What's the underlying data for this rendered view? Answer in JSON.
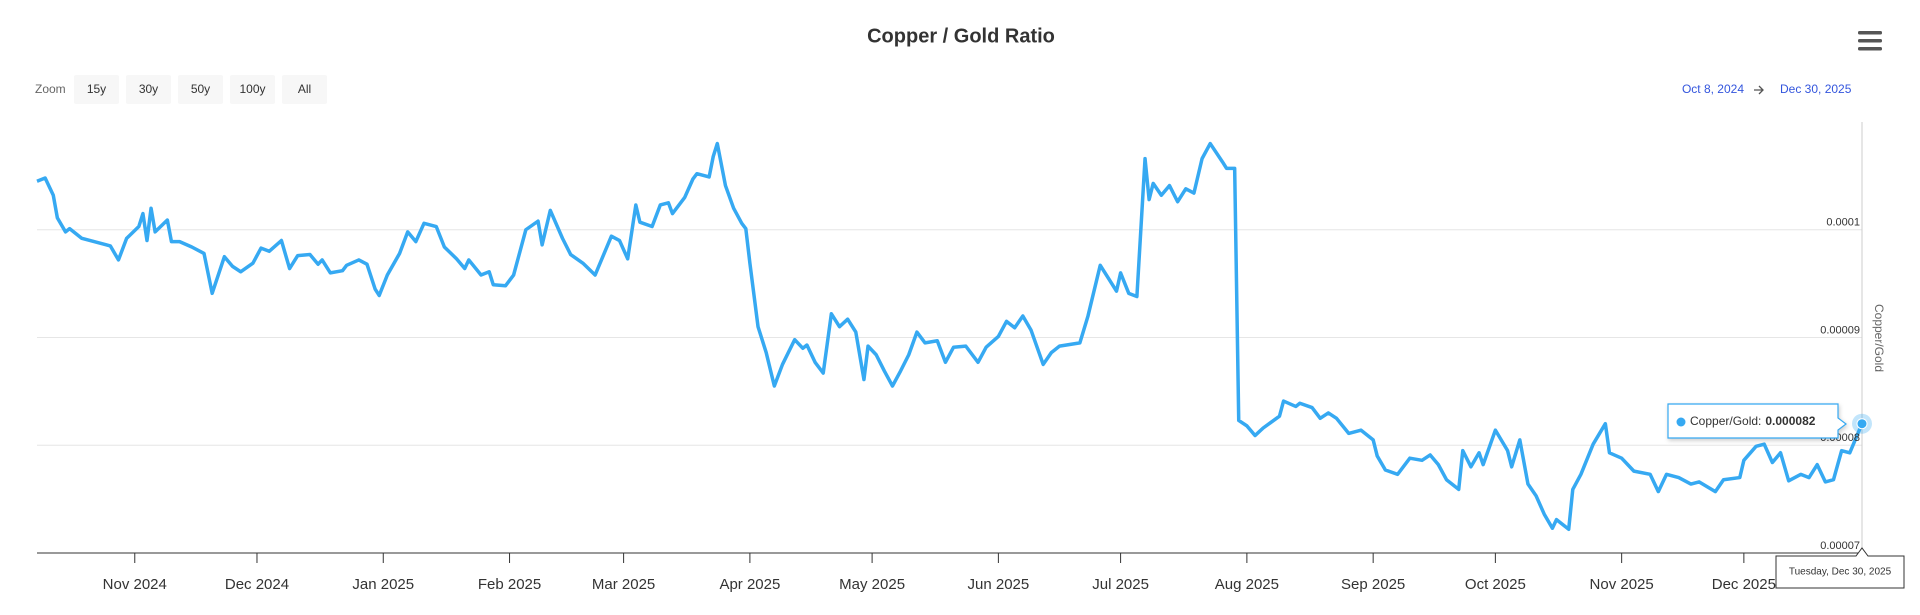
{
  "chart_data": {
    "type": "line",
    "title": "Copper / Gold Ratio",
    "zoom": {
      "label": "Zoom",
      "buttons": [
        "15y",
        "30y",
        "50y",
        "100y",
        "All"
      ]
    },
    "range": {
      "from": "Oct 8, 2024",
      "to": "Dec 30, 2025"
    },
    "y_label": "Copper/Gold",
    "color": "#36a9f2",
    "xlim": [
      "2024-10-08",
      "2025-12-30"
    ],
    "xticks": [
      {
        "value": "2024-11-01",
        "label": "Nov 2024"
      },
      {
        "value": "2024-12-01",
        "label": "Dec 2024"
      },
      {
        "value": "2025-01-01",
        "label": "Jan 2025"
      },
      {
        "value": "2025-02-01",
        "label": "Feb 2025"
      },
      {
        "value": "2025-03-01",
        "label": "Mar 2025"
      },
      {
        "value": "2025-04-01",
        "label": "Apr 2025"
      },
      {
        "value": "2025-05-01",
        "label": "May 2025"
      },
      {
        "value": "2025-06-01",
        "label": "Jun 2025"
      },
      {
        "value": "2025-07-01",
        "label": "Jul 2025"
      },
      {
        "value": "2025-08-01",
        "label": "Aug 2025"
      },
      {
        "value": "2025-09-01",
        "label": "Sep 2025"
      },
      {
        "value": "2025-10-01",
        "label": "Oct 2025"
      },
      {
        "value": "2025-11-01",
        "label": "Nov 2025"
      },
      {
        "value": "2025-12-01",
        "label": "Dec 2025"
      }
    ],
    "ylim": [
      7e-05,
      0.00011
    ],
    "yticks": [
      7e-05,
      8e-05,
      9e-05,
      0.0001
    ],
    "grid": true,
    "tooltip": {
      "label": "Copper/Gold:",
      "header": "Tuesday, Dec 30, 2025"
    },
    "x": [
      "2024-10-08",
      "2024-10-10",
      "2024-10-12",
      "2024-10-13",
      "2024-10-15",
      "2024-10-16",
      "2024-10-19",
      "2024-10-22",
      "2024-10-25",
      "2024-10-26",
      "2024-10-28",
      "2024-10-30",
      "2024-11-02",
      "2024-11-03",
      "2024-11-04",
      "2024-11-05",
      "2024-11-06",
      "2024-11-09",
      "2024-11-10",
      "2024-11-12",
      "2024-11-15",
      "2024-11-18",
      "2024-11-20",
      "2024-11-23",
      "2024-11-25",
      "2024-11-27",
      "2024-11-30",
      "2024-12-02",
      "2024-12-04",
      "2024-12-07",
      "2024-12-09",
      "2024-12-11",
      "2024-12-14",
      "2024-12-16",
      "2024-12-17",
      "2024-12-19",
      "2024-12-22",
      "2024-12-23",
      "2024-12-26",
      "2024-12-28",
      "2024-12-30",
      "2024-12-31",
      "2025-01-02",
      "2025-01-05",
      "2025-01-07",
      "2025-01-09",
      "2025-01-11",
      "2025-01-14",
      "2025-01-16",
      "2025-01-19",
      "2025-01-21",
      "2025-01-22",
      "2025-01-25",
      "2025-01-27",
      "2025-01-28",
      "2025-01-31",
      "2025-02-02",
      "2025-02-05",
      "2025-02-08",
      "2025-02-09",
      "2025-02-11",
      "2025-02-14",
      "2025-02-16",
      "2025-02-19",
      "2025-02-22",
      "2025-02-26",
      "2025-02-28",
      "2025-03-02",
      "2025-03-04",
      "2025-03-05",
      "2025-03-08",
      "2025-03-10",
      "2025-03-12",
      "2025-03-13",
      "2025-03-16",
      "2025-03-18",
      "2025-03-19",
      "2025-03-22",
      "2025-03-23",
      "2025-03-24",
      "2025-03-26",
      "2025-03-28",
      "2025-03-30",
      "2025-03-31",
      "2025-04-01",
      "2025-04-03",
      "2025-04-05",
      "2025-04-07",
      "2025-04-09",
      "2025-04-12",
      "2025-04-14",
      "2025-04-15",
      "2025-04-17",
      "2025-04-19",
      "2025-04-21",
      "2025-04-23",
      "2025-04-25",
      "2025-04-27",
      "2025-04-29",
      "2025-04-30",
      "2025-05-02",
      "2025-05-04",
      "2025-05-06",
      "2025-05-08",
      "2025-05-10",
      "2025-05-12",
      "2025-05-14",
      "2025-05-17",
      "2025-05-19",
      "2025-05-21",
      "2025-05-24",
      "2025-05-27",
      "2025-05-29",
      "2025-06-01",
      "2025-06-03",
      "2025-06-05",
      "2025-06-07",
      "2025-06-09",
      "2025-06-12",
      "2025-06-14",
      "2025-06-16",
      "2025-06-21",
      "2025-06-23",
      "2025-06-26",
      "2025-06-28",
      "2025-06-30",
      "2025-07-01",
      "2025-07-03",
      "2025-07-05",
      "2025-07-07",
      "2025-07-08",
      "2025-07-09",
      "2025-07-11",
      "2025-07-13",
      "2025-07-15",
      "2025-07-17",
      "2025-07-19",
      "2025-07-21",
      "2025-07-23",
      "2025-07-26",
      "2025-07-27",
      "2025-07-29",
      "2025-07-30",
      "2025-08-01",
      "2025-08-03",
      "2025-08-05",
      "2025-08-09",
      "2025-08-10",
      "2025-08-13",
      "2025-08-14",
      "2025-08-17",
      "2025-08-19",
      "2025-08-21",
      "2025-08-23",
      "2025-08-26",
      "2025-08-29",
      "2025-09-01",
      "2025-09-02",
      "2025-09-04",
      "2025-09-07",
      "2025-09-10",
      "2025-09-13",
      "2025-09-15",
      "2025-09-17",
      "2025-09-19",
      "2025-09-22",
      "2025-09-23",
      "2025-09-25",
      "2025-09-27",
      "2025-09-28",
      "2025-10-01",
      "2025-10-04",
      "2025-10-05",
      "2025-10-07",
      "2025-10-09",
      "2025-10-11",
      "2025-10-13",
      "2025-10-15",
      "2025-10-16",
      "2025-10-19",
      "2025-10-20",
      "2025-10-22",
      "2025-10-25",
      "2025-10-28",
      "2025-10-29",
      "2025-11-01",
      "2025-11-04",
      "2025-11-08",
      "2025-11-10",
      "2025-11-12",
      "2025-11-15",
      "2025-11-18",
      "2025-11-20",
      "2025-11-24",
      "2025-11-26",
      "2025-11-30",
      "2025-12-01",
      "2025-12-04",
      "2025-12-06",
      "2025-12-08",
      "2025-12-10",
      "2025-12-12",
      "2025-12-15",
      "2025-12-17",
      "2025-12-19",
      "2025-12-21",
      "2025-12-23",
      "2025-12-25",
      "2025-12-27",
      "2025-12-30"
    ],
    "values": [
      0.0001045,
      0.0001048,
      0.0001032,
      0.0001011,
      9.98e-05,
      0.0001001,
      9.92e-05,
      9.89e-05,
      9.86e-05,
      9.85e-05,
      9.72e-05,
      9.92e-05,
      0.0001003,
      0.0001015,
      9.9e-05,
      0.000102,
      9.98e-05,
      0.0001009,
      9.89e-05,
      9.89e-05,
      9.84e-05,
      9.78e-05,
      9.41e-05,
      9.75e-05,
      9.66e-05,
      9.61e-05,
      9.69e-05,
      9.83e-05,
      9.8e-05,
      9.9e-05,
      9.64e-05,
      9.76e-05,
      9.77e-05,
      9.68e-05,
      9.72e-05,
      9.6e-05,
      9.62e-05,
      9.67e-05,
      9.72e-05,
      9.68e-05,
      9.45e-05,
      9.39e-05,
      9.58e-05,
      9.78e-05,
      9.98e-05,
      9.89e-05,
      0.0001006,
      0.0001003,
      9.84e-05,
      9.73e-05,
      9.64e-05,
      9.72e-05,
      9.58e-05,
      9.61e-05,
      9.49e-05,
      9.48e-05,
      9.58e-05,
      0.0001,
      0.0001008,
      9.86e-05,
      0.0001018,
      9.92e-05,
      9.77e-05,
      9.69e-05,
      9.58e-05,
      9.94e-05,
      9.9e-05,
      9.73e-05,
      0.0001023,
      0.0001007,
      0.0001003,
      0.0001023,
      0.0001025,
      0.0001015,
      0.000103,
      0.0001047,
      0.0001052,
      0.0001049,
      0.0001068,
      0.000108,
      0.0001041,
      0.000102,
      0.0001006,
      0.0001001,
      9.69e-05,
      9.1e-05,
      8.86e-05,
      8.55e-05,
      8.75e-05,
      8.98e-05,
      8.9e-05,
      8.93e-05,
      8.77e-05,
      8.67e-05,
      9.22e-05,
      9.1e-05,
      9.17e-05,
      9.05e-05,
      8.61e-05,
      8.92e-05,
      8.84e-05,
      8.69e-05,
      8.55e-05,
      8.69e-05,
      8.84e-05,
      9.05e-05,
      8.95e-05,
      8.97e-05,
      8.77e-05,
      8.91e-05,
      8.92e-05,
      8.77e-05,
      8.91e-05,
      9.01e-05,
      9.15e-05,
      9.09e-05,
      9.2e-05,
      9.07e-05,
      8.75e-05,
      8.86e-05,
      8.92e-05,
      8.95e-05,
      9.2e-05,
      9.67e-05,
      9.55e-05,
      9.43e-05,
      9.6e-05,
      9.41e-05,
      9.38e-05,
      0.0001066,
      0.0001028,
      0.0001043,
      0.0001032,
      0.0001041,
      0.0001026,
      0.0001038,
      0.0001034,
      0.0001066,
      0.000108,
      0.0001063,
      0.0001057,
      0.0001057,
      8.23e-05,
      8.18e-05,
      8.09e-05,
      8.16e-05,
      8.27e-05,
      8.41e-05,
      8.36e-05,
      8.39e-05,
      8.35e-05,
      8.25e-05,
      8.3e-05,
      8.25e-05,
      8.11e-05,
      8.14e-05,
      8.05e-05,
      7.9e-05,
      7.77e-05,
      7.73e-05,
      7.88e-05,
      7.86e-05,
      7.91e-05,
      7.82e-05,
      7.68e-05,
      7.59e-05,
      7.95e-05,
      7.8e-05,
      7.93e-05,
      7.82e-05,
      8.14e-05,
      7.95e-05,
      7.8e-05,
      8.05e-05,
      7.64e-05,
      7.53e-05,
      7.36e-05,
      7.23e-05,
      7.31e-05,
      7.22e-05,
      7.59e-05,
      7.73e-05,
      8.01e-05,
      8.2e-05,
      7.93e-05,
      7.88e-05,
      7.76e-05,
      7.73e-05,
      7.57e-05,
      7.73e-05,
      7.7e-05,
      7.64e-05,
      7.66e-05,
      7.57e-05,
      7.68e-05,
      7.7e-05,
      7.86e-05,
      7.99e-05,
      8.01e-05,
      7.84e-05,
      7.93e-05,
      7.67e-05,
      7.73e-05,
      7.7e-05,
      7.82e-05,
      7.66e-05,
      7.68e-05,
      7.95e-05,
      7.93e-05,
      8.2e-05
    ]
  }
}
